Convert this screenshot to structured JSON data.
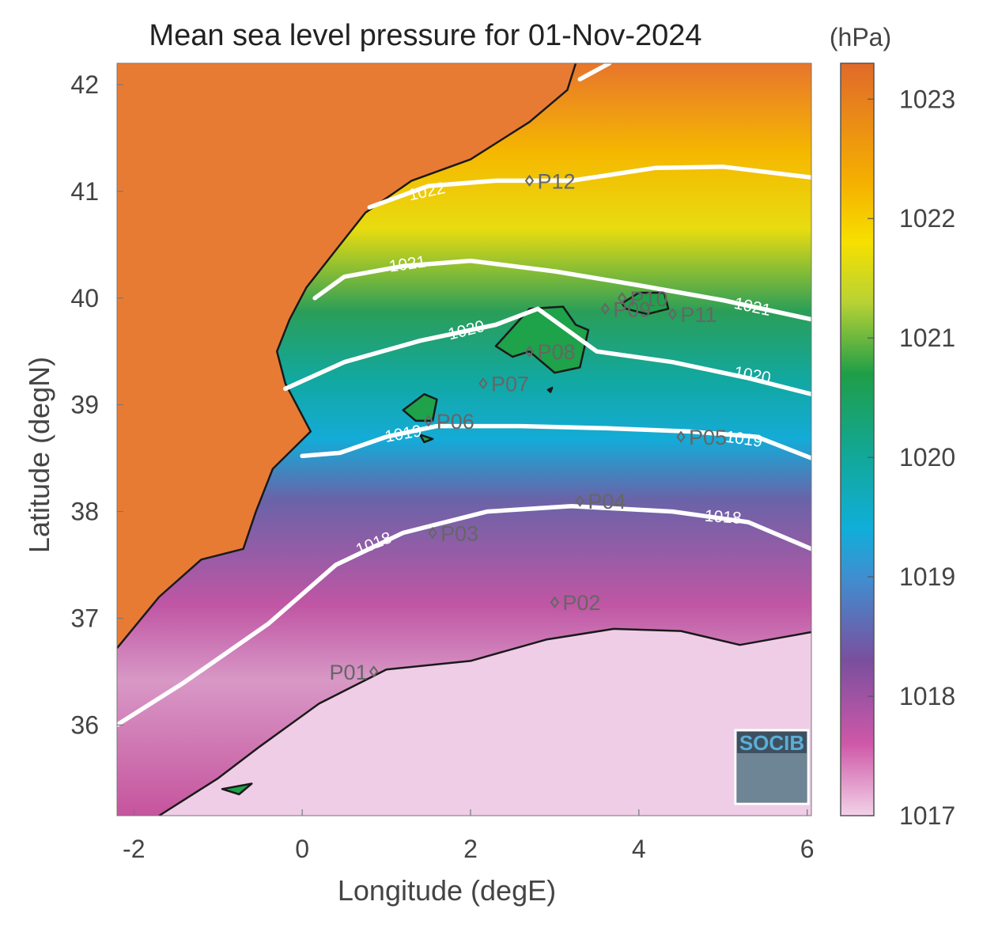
{
  "title": "Mean sea level pressure for 01-Nov-2024",
  "units": "(hPa)",
  "xlabel": "Longitude (degE)",
  "ylabel": "Latitude (degN)",
  "logo_text": "SOCIB",
  "x_ticks": [
    -2,
    0,
    2,
    4,
    6
  ],
  "y_ticks": [
    36,
    37,
    38,
    39,
    40,
    41,
    42
  ],
  "lon_range": [
    -2.2,
    6.05
  ],
  "lat_range": [
    35.15,
    42.2
  ],
  "colorbar": {
    "ticks": [
      1017,
      1018,
      1019,
      1020,
      1021,
      1022,
      1023
    ],
    "range": [
      1017,
      1023.3
    ],
    "stops": [
      {
        "v": 1017.0,
        "c": "#f2d2e8"
      },
      {
        "v": 1017.6,
        "c": "#cf58a8"
      },
      {
        "v": 1018.3,
        "c": "#7a4f9e"
      },
      {
        "v": 1019.0,
        "c": "#3f8fd0"
      },
      {
        "v": 1019.4,
        "c": "#10aeda"
      },
      {
        "v": 1020.0,
        "c": "#12a89a"
      },
      {
        "v": 1020.7,
        "c": "#1f9e48"
      },
      {
        "v": 1021.3,
        "c": "#b8d234"
      },
      {
        "v": 1021.8,
        "c": "#f6e000"
      },
      {
        "v": 1022.3,
        "c": "#f5b000"
      },
      {
        "v": 1023.3,
        "c": "#e06a2a"
      }
    ]
  },
  "points": [
    {
      "id": "P01",
      "label": "P01",
      "lon": 0.85,
      "lat": 36.5
    },
    {
      "id": "P02",
      "label": "P02",
      "lon": 3.0,
      "lat": 37.15
    },
    {
      "id": "P03",
      "label": "P03",
      "lon": 1.55,
      "lat": 37.8
    },
    {
      "id": "P04",
      "label": "P04",
      "lon": 3.3,
      "lat": 38.1
    },
    {
      "id": "P05",
      "label": "P05",
      "lon": 4.5,
      "lat": 38.7
    },
    {
      "id": "P06",
      "label": "P06",
      "lon": 1.5,
      "lat": 38.85
    },
    {
      "id": "P07",
      "label": "P07",
      "lon": 2.15,
      "lat": 39.2
    },
    {
      "id": "P08",
      "label": "P08",
      "lon": 2.7,
      "lat": 39.5
    },
    {
      "id": "P09",
      "label": "P09",
      "lon": 3.6,
      "lat": 39.9
    },
    {
      "id": "P10",
      "label": "P10",
      "lon": 3.8,
      "lat": 40.0
    },
    {
      "id": "P11",
      "label": "P11",
      "lon": 4.4,
      "lat": 39.85
    },
    {
      "id": "P12",
      "label": "P12",
      "lon": 2.7,
      "lat": 41.1
    }
  ],
  "isobars": [
    {
      "level": 1018,
      "label": "1018",
      "points": [
        [
          -2.2,
          36.0
        ],
        [
          -1.4,
          36.4
        ],
        [
          -0.4,
          36.95
        ],
        [
          0.4,
          37.5
        ],
        [
          1.2,
          37.8
        ],
        [
          2.2,
          38.0
        ],
        [
          3.2,
          38.05
        ],
        [
          4.4,
          38.0
        ],
        [
          5.3,
          37.9
        ],
        [
          6.05,
          37.65
        ]
      ],
      "labels": [
        {
          "lon": 0.85,
          "lat": 37.7,
          "angle": -22
        },
        {
          "lon": 5.0,
          "lat": 37.95,
          "angle": 4
        }
      ]
    },
    {
      "level": 1019,
      "label": "1019",
      "points": [
        [
          0.0,
          38.52
        ],
        [
          0.45,
          38.55
        ],
        [
          1.0,
          38.7
        ],
        [
          1.6,
          38.8
        ],
        [
          2.6,
          38.8
        ],
        [
          3.6,
          38.78
        ],
        [
          4.6,
          38.75
        ],
        [
          5.4,
          38.7
        ],
        [
          6.05,
          38.5
        ]
      ],
      "labels": [
        {
          "lon": 1.2,
          "lat": 38.73,
          "angle": -10
        },
        {
          "lon": 5.25,
          "lat": 38.68,
          "angle": 8
        }
      ]
    },
    {
      "level": 1020,
      "label": "1020",
      "points": [
        [
          -0.2,
          39.15
        ],
        [
          0.5,
          39.4
        ],
        [
          1.4,
          39.6
        ],
        [
          2.3,
          39.75
        ],
        [
          2.8,
          39.9
        ],
        [
          3.5,
          39.5
        ],
        [
          4.4,
          39.4
        ],
        [
          5.3,
          39.25
        ],
        [
          6.05,
          39.1
        ]
      ],
      "labels": [
        {
          "lon": 1.95,
          "lat": 39.7,
          "angle": -14
        },
        {
          "lon": 5.35,
          "lat": 39.28,
          "angle": 10
        }
      ]
    },
    {
      "level": 1021,
      "label": "1021",
      "points": [
        [
          0.15,
          40.0
        ],
        [
          0.5,
          40.2
        ],
        [
          1.2,
          40.3
        ],
        [
          2.0,
          40.35
        ],
        [
          3.0,
          40.25
        ],
        [
          4.0,
          40.12
        ],
        [
          5.0,
          39.98
        ],
        [
          6.05,
          39.8
        ]
      ],
      "labels": [
        {
          "lon": 1.25,
          "lat": 40.32,
          "angle": -8
        },
        {
          "lon": 5.35,
          "lat": 39.92,
          "angle": 12
        }
      ]
    },
    {
      "level": 1022,
      "label": "1022",
      "points": [
        [
          0.8,
          40.85
        ],
        [
          1.5,
          41.05
        ],
        [
          2.3,
          41.1
        ],
        [
          3.2,
          41.1
        ],
        [
          4.2,
          41.22
        ],
        [
          5.0,
          41.23
        ],
        [
          6.05,
          41.13
        ]
      ],
      "labels": [
        {
          "lon": 1.48,
          "lat": 41.0,
          "angle": -12
        }
      ]
    },
    {
      "level": 1023,
      "label": "",
      "points": [
        [
          3.3,
          42.05
        ],
        [
          3.65,
          42.2
        ]
      ],
      "labels": []
    }
  ],
  "coastlines": [
    {
      "name": "iberia",
      "points": [
        [
          -2.2,
          36.72
        ],
        [
          -1.7,
          37.2
        ],
        [
          -1.2,
          37.55
        ],
        [
          -0.7,
          37.65
        ],
        [
          -0.55,
          38.0
        ],
        [
          -0.35,
          38.4
        ],
        [
          0.1,
          38.75
        ],
        [
          -0.2,
          39.2
        ],
        [
          -0.3,
          39.5
        ],
        [
          -0.15,
          39.8
        ],
        [
          0.05,
          40.1
        ],
        [
          0.5,
          40.55
        ],
        [
          0.75,
          40.8
        ],
        [
          1.3,
          41.1
        ],
        [
          2.0,
          41.3
        ],
        [
          2.7,
          41.65
        ],
        [
          3.15,
          41.95
        ],
        [
          3.25,
          42.2
        ]
      ]
    },
    {
      "name": "africa",
      "points": [
        [
          -1.7,
          35.15
        ],
        [
          -1.0,
          35.5
        ],
        [
          -0.5,
          35.8
        ],
        [
          0.2,
          36.2
        ],
        [
          1.0,
          36.52
        ],
        [
          2.0,
          36.6
        ],
        [
          2.9,
          36.8
        ],
        [
          3.7,
          36.9
        ],
        [
          4.5,
          36.88
        ],
        [
          5.2,
          36.75
        ],
        [
          6.05,
          36.87
        ]
      ]
    },
    {
      "name": "mallorca",
      "points": [
        [
          2.3,
          39.55
        ],
        [
          2.45,
          39.68
        ],
        [
          2.7,
          39.9
        ],
        [
          3.1,
          39.92
        ],
        [
          3.25,
          39.75
        ],
        [
          3.4,
          39.7
        ],
        [
          3.3,
          39.35
        ],
        [
          3.0,
          39.3
        ],
        [
          2.7,
          39.5
        ],
        [
          2.5,
          39.45
        ],
        [
          2.3,
          39.55
        ]
      ]
    },
    {
      "name": "menorca",
      "points": [
        [
          3.8,
          39.95
        ],
        [
          4.0,
          40.05
        ],
        [
          4.3,
          40.05
        ],
        [
          4.35,
          39.9
        ],
        [
          4.1,
          39.85
        ],
        [
          3.85,
          39.9
        ],
        [
          3.8,
          39.95
        ]
      ]
    },
    {
      "name": "ibiza",
      "points": [
        [
          1.2,
          38.95
        ],
        [
          1.45,
          39.1
        ],
        [
          1.6,
          39.05
        ],
        [
          1.55,
          38.85
        ],
        [
          1.35,
          38.85
        ],
        [
          1.2,
          38.95
        ]
      ]
    },
    {
      "name": "formentera",
      "points": [
        [
          1.4,
          38.72
        ],
        [
          1.55,
          38.68
        ],
        [
          1.45,
          38.65
        ],
        [
          1.4,
          38.72
        ]
      ]
    },
    {
      "name": "cabrera",
      "points": [
        [
          2.92,
          39.14
        ],
        [
          2.97,
          39.16
        ],
        [
          2.95,
          39.12
        ],
        [
          2.92,
          39.14
        ]
      ]
    },
    {
      "name": "alboran",
      "points": [
        [
          -0.95,
          35.4
        ],
        [
          -0.6,
          35.45
        ],
        [
          -0.75,
          35.35
        ],
        [
          -0.95,
          35.4
        ]
      ]
    }
  ],
  "colors": {
    "sea_north": "#e8752c",
    "sea_south": "#f0bcdc",
    "contour": "#ffffff",
    "coast": "#1a1a1a",
    "marker": "#666666"
  }
}
